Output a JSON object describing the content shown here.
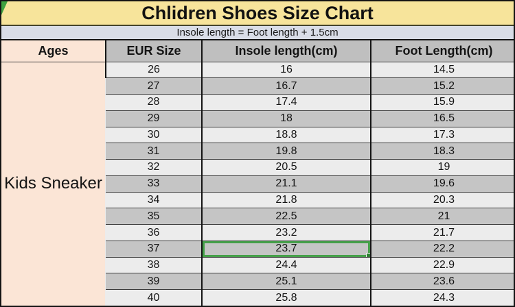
{
  "page": {
    "title": "Chlidren Shoes Size Chart",
    "subtitle": "Insole length = Foot length + 1.5cm"
  },
  "colors": {
    "title_bg": "#f7e49b",
    "subtitle_bg": "#d9dde7",
    "ages_bg": "#fbe5d6",
    "header_bg": "#bfbfbf",
    "row_light": "#ececec",
    "row_dark": "#c5c5c5",
    "selection_green": "#45a049",
    "fill_handle_green": "#2e7d32"
  },
  "chart_data": {
    "type": "table",
    "title": "Chlidren Shoes Size Chart",
    "note": "Insole length = Foot length + 1.5cm",
    "columns": [
      "Ages",
      "EUR Size",
      "Insole length(cm)",
      "Foot Length(cm)"
    ],
    "ages_label": "Kids Sneaker",
    "rows": [
      {
        "eur": "26",
        "insole": "16",
        "foot": "14.5"
      },
      {
        "eur": "27",
        "insole": "16.7",
        "foot": "15.2"
      },
      {
        "eur": "28",
        "insole": "17.4",
        "foot": "15.9"
      },
      {
        "eur": "29",
        "insole": "18",
        "foot": "16.5"
      },
      {
        "eur": "30",
        "insole": "18.8",
        "foot": "17.3"
      },
      {
        "eur": "31",
        "insole": "19.8",
        "foot": "18.3"
      },
      {
        "eur": "32",
        "insole": "20.5",
        "foot": "19"
      },
      {
        "eur": "33",
        "insole": "21.1",
        "foot": "19.6"
      },
      {
        "eur": "34",
        "insole": "21.8",
        "foot": "20.3"
      },
      {
        "eur": "35",
        "insole": "22.5",
        "foot": "21"
      },
      {
        "eur": "36",
        "insole": "23.2",
        "foot": "21.7"
      },
      {
        "eur": "37",
        "insole": "23.7",
        "foot": "22.2"
      },
      {
        "eur": "38",
        "insole": "24.4",
        "foot": "22.9"
      },
      {
        "eur": "39",
        "insole": "25.1",
        "foot": "23.6"
      },
      {
        "eur": "40",
        "insole": "25.8",
        "foot": "24.3"
      }
    ],
    "selected_cell": {
      "eur": "37",
      "column": "insole"
    }
  }
}
